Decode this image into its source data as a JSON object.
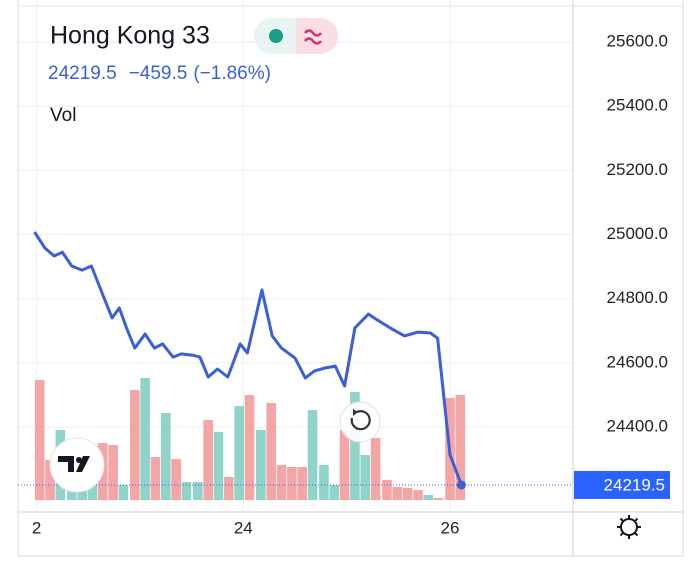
{
  "header": {
    "title": "Hong Kong 33",
    "price": "24219.5",
    "change": "−459.5",
    "change_percent": "(−1.86%)",
    "volume_label": "Vol"
  },
  "chart_data": {
    "type": "line",
    "x": [
      21.98,
      22.08,
      22.17,
      22.25,
      22.34,
      22.44,
      22.53,
      22.63,
      22.73,
      22.8,
      22.87,
      22.95,
      23.05,
      23.14,
      23.22,
      23.32,
      23.4,
      23.51,
      23.58,
      23.66,
      23.75,
      23.85,
      23.97,
      24.04,
      24.18,
      24.28,
      24.37,
      24.5,
      24.6,
      24.69,
      24.79,
      24.89,
      24.98,
      25.08,
      25.21,
      25.3,
      25.42,
      25.56,
      25.69,
      25.81,
      25.88,
      26.0,
      26.11
    ],
    "series": [
      {
        "color": "#3a5fd6",
        "values": [
          25008,
          24958,
          24933,
          24945,
          24902,
          24889,
          24902,
          24821,
          24740,
          24771,
          24709,
          24646,
          24690,
          24646,
          24659,
          24618,
          24628,
          24624,
          24618,
          24556,
          24581,
          24556,
          24659,
          24631,
          24827,
          24684,
          24646,
          24615,
          24553,
          24575,
          24584,
          24590,
          24528,
          24709,
          24752,
          24733,
          24709,
          24684,
          24696,
          24693,
          24677,
          24313,
          24219.5
        ]
      }
    ],
    "volume": {
      "x": [
        22.03,
        22.13,
        22.23,
        22.34,
        22.44,
        22.54,
        22.64,
        22.74,
        22.84,
        22.95,
        23.05,
        23.15,
        23.25,
        23.35,
        23.45,
        23.56,
        23.66,
        23.76,
        23.86,
        23.96,
        24.06,
        24.17,
        24.27,
        24.37,
        24.47,
        24.57,
        24.67,
        24.78,
        24.88,
        24.98,
        25.08,
        25.18,
        25.28,
        25.39,
        25.49,
        25.59,
        25.69,
        25.79,
        25.89,
        26.0,
        26.1
      ],
      "values": [
        120,
        40,
        70,
        60,
        15,
        40,
        57,
        55,
        15,
        110,
        122,
        43,
        87,
        41,
        18,
        18,
        80,
        68,
        23,
        94,
        105,
        70,
        97,
        35,
        33,
        33,
        90,
        35,
        15,
        70,
        108,
        45,
        62,
        20,
        13,
        12,
        10,
        5,
        2,
        102,
        105
      ],
      "colors": [
        "#f4a5a5",
        "#f4a5a5",
        "#90d3c9",
        "#90d3c9",
        "#90d3c9",
        "#90d3c9",
        "#f4a5a5",
        "#f4a5a5",
        "#90d3c9",
        "#f4a5a5",
        "#90d3c9",
        "#f4a5a5",
        "#90d3c9",
        "#f4a5a5",
        "#90d3c9",
        "#90d3c9",
        "#f4a5a5",
        "#90d3c9",
        "#f4a5a5",
        "#90d3c9",
        "#f4a5a5",
        "#90d3c9",
        "#f4a5a5",
        "#f4a5a5",
        "#f4a5a5",
        "#f4a5a5",
        "#90d3c9",
        "#90d3c9",
        "#90d3c9",
        "#f4a5a5",
        "#90d3c9",
        "#90d3c9",
        "#f4a5a5",
        "#f4a5a5",
        "#f4a5a5",
        "#f4a5a5",
        "#f4a5a5",
        "#90d3c9",
        "#f4a5a5",
        "#f4a5a5",
        "#f4a5a5"
      ]
    },
    "last_price": 24219.5,
    "last_price_color": "#2962ff",
    "xlim": [
      21.82,
      27.19
    ],
    "xticks": [
      {
        "value": 22,
        "label": "2"
      },
      24,
      26
    ],
    "ylim": [
      24157,
      25731
    ],
    "yticks": [
      {
        "value": 24400,
        "label": "24400.0"
      },
      {
        "value": 24600,
        "label": "24600.0"
      },
      {
        "value": 24800,
        "label": "24800.0"
      },
      {
        "value": 25000,
        "label": "25000.0"
      },
      {
        "value": 25200,
        "label": "25200.0"
      },
      {
        "value": 25400,
        "label": "25400.0"
      },
      {
        "value": 25600,
        "label": "25600.0"
      }
    ],
    "grid": true
  }
}
